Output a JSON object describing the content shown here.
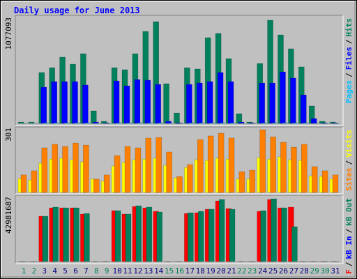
{
  "title": "Daily usage for June 2013",
  "categories": [
    "1",
    "2",
    "3",
    "4",
    "5",
    "6",
    "7",
    "8",
    "9",
    "10",
    "11",
    "12",
    "13",
    "14",
    "15",
    "16",
    "17",
    "18",
    "19",
    "20",
    "21",
    "22",
    "23",
    "24",
    "25",
    "26",
    "27",
    "28",
    "29",
    "30",
    "31"
  ],
  "x_label_colors": [
    "#00805C",
    "#00805C",
    "#000080",
    "#000080",
    "#000080",
    "#000080",
    "#000080",
    "#00805C",
    "#00805C",
    "#000080",
    "#000080",
    "#000080",
    "#000080",
    "#000080",
    "#00805C",
    "#00805C",
    "#000080",
    "#000080",
    "#000080",
    "#000080",
    "#000080",
    "#00805C",
    "#00805C",
    "#000080",
    "#000080",
    "#000080",
    "#000080",
    "#000080",
    "#00805C",
    "#00805C",
    "#000080"
  ],
  "chart_data": [
    {
      "type": "bar",
      "ylim": [
        0,
        1077093
      ],
      "yticks": [
        1077093
      ],
      "separator": "/",
      "legend_reversed": true,
      "series": [
        {
          "name": "Hits",
          "color": "#00805C",
          "values": [
            14000,
            14000,
            528000,
            578000,
            687000,
            614000,
            723000,
            130000,
            22000,
            578000,
            557000,
            723000,
            954000,
            1055000,
            412000,
            108000,
            578000,
            564000,
            889000,
            933000,
            672000,
            101000,
            14000,
            622000,
            1070000,
            918000,
            774000,
            586000,
            181000,
            22000,
            14000
          ]
        },
        {
          "name": "Files",
          "color": "#0000FF",
          "values": [
            0,
            0,
            376000,
            434000,
            434000,
            434000,
            398000,
            14000,
            7000,
            441000,
            390000,
            455000,
            448000,
            405000,
            22000,
            7000,
            405000,
            419000,
            434000,
            528000,
            434000,
            14000,
            7000,
            419000,
            419000,
            535000,
            470000,
            296000,
            51000,
            7000,
            7000
          ]
        },
        {
          "name": "Pages",
          "color": "#00C0FF",
          "values": [
            3000,
            3000,
            7000,
            7000,
            7000,
            7000,
            7000,
            3000,
            3000,
            7000,
            7000,
            7000,
            7000,
            7000,
            3000,
            3000,
            7000,
            7000,
            7000,
            7000,
            7000,
            3000,
            3000,
            7000,
            7000,
            7000,
            7000,
            7000,
            3000,
            3000,
            3000
          ]
        }
      ]
    },
    {
      "type": "bar",
      "ylim": [
        0,
        301
      ],
      "yticks": [
        301
      ],
      "separator": "/",
      "legend_reversed": true,
      "series": [
        {
          "name": "Visits",
          "color": "#FFFF00",
          "values": [
            67,
            60,
            140,
            160,
            164,
            157,
            147,
            64,
            54,
            127,
            144,
            157,
            160,
            164,
            130,
            70,
            120,
            157,
            154,
            164,
            160,
            64,
            64,
            167,
            160,
            171,
            157,
            154,
            80,
            77,
            64
          ]
        },
        {
          "name": "Sites",
          "color": "#FF8000",
          "values": [
            84,
            104,
            214,
            231,
            221,
            237,
            227,
            64,
            84,
            177,
            221,
            214,
            261,
            264,
            194,
            77,
            134,
            254,
            271,
            284,
            261,
            100,
            107,
            301,
            267,
            241,
            217,
            231,
            124,
            104,
            84
          ]
        }
      ]
    },
    {
      "type": "bar",
      "ylim": [
        0,
        42981687
      ],
      "yticks": [
        42981687
      ],
      "separator": "/",
      "legend_reversed": false,
      "series": [
        {
          "name": "kB F",
          "color": "#FF0000",
          "values": [
            100000,
            100000,
            31042000,
            36773000,
            36773000,
            36773000,
            32475000,
            100000,
            100000,
            34863000,
            32475000,
            37728000,
            36773000,
            34385000,
            100000,
            100000,
            32953000,
            33430000,
            35818000,
            41549000,
            36295000,
            100000,
            100000,
            34385000,
            42504000,
            36773000,
            37250000,
            100000,
            100000,
            100000,
            100000
          ]
        },
        {
          "name": "kB In",
          "color": "#0000FF",
          "values": [
            0,
            0,
            0,
            0,
            0,
            0,
            0,
            0,
            0,
            0,
            0,
            0,
            0,
            0,
            0,
            0,
            0,
            0,
            0,
            0,
            0,
            0,
            0,
            0,
            0,
            0,
            0,
            0,
            0,
            0,
            0
          ]
        },
        {
          "name": "kB Out",
          "color": "#00805C",
          "values": [
            100000,
            100000,
            31042000,
            37250000,
            36773000,
            36773000,
            32953000,
            100000,
            100000,
            34863000,
            32475000,
            38206000,
            37250000,
            33908000,
            100000,
            100000,
            33430000,
            34385000,
            35818000,
            42504000,
            35818000,
            100000,
            100000,
            34863000,
            42981687,
            36773000,
            23879000,
            100000,
            100000,
            100000,
            100000
          ]
        }
      ]
    }
  ]
}
